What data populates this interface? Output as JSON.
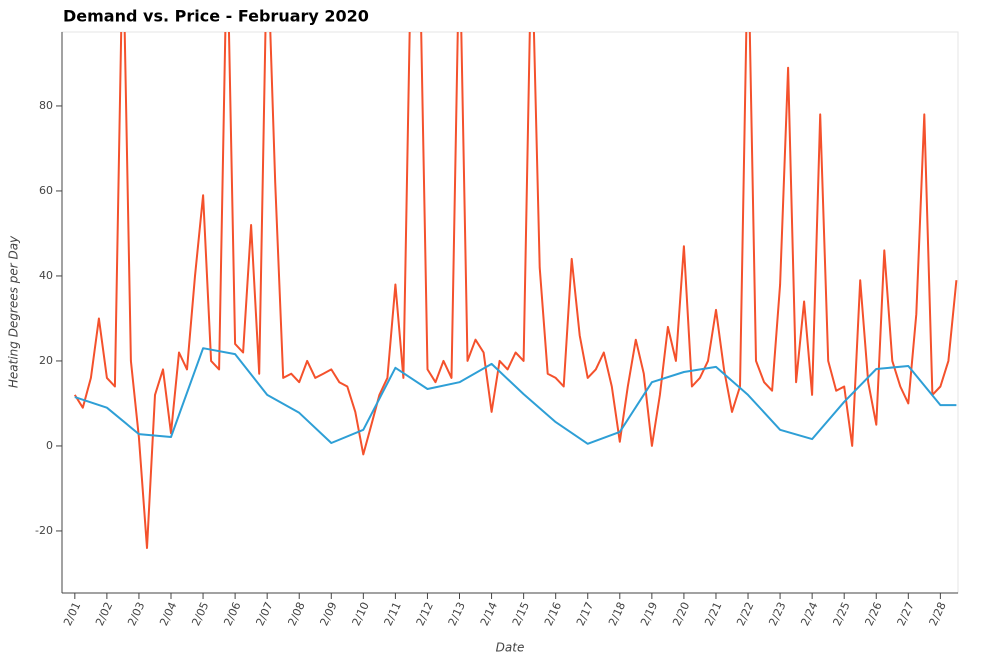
{
  "chart_data": {
    "type": "line",
    "title": "Demand vs. Price - February 2020",
    "xlabel": "Date",
    "ylabel": "Heating Degrees per Day",
    "xlim": [
      -0.4,
      27.55
    ],
    "ylim": [
      -34.6,
      97.4
    ],
    "yticks": [
      -20,
      0,
      20,
      40,
      60,
      80
    ],
    "xticks": [
      {
        "value": 0,
        "label": "2/01"
      },
      {
        "value": 1,
        "label": "2/02"
      },
      {
        "value": 2,
        "label": "2/03"
      },
      {
        "value": 3,
        "label": "2/04"
      },
      {
        "value": 4,
        "label": "2/05"
      },
      {
        "value": 5,
        "label": "2/06"
      },
      {
        "value": 6,
        "label": "2/07"
      },
      {
        "value": 7,
        "label": "2/08"
      },
      {
        "value": 8,
        "label": "2/09"
      },
      {
        "value": 9,
        "label": "2/10"
      },
      {
        "value": 10,
        "label": "2/11"
      },
      {
        "value": 11,
        "label": "2/12"
      },
      {
        "value": 12,
        "label": "2/13"
      },
      {
        "value": 13,
        "label": "2/14"
      },
      {
        "value": 14,
        "label": "2/15"
      },
      {
        "value": 15,
        "label": "2/16"
      },
      {
        "value": 16,
        "label": "2/17"
      },
      {
        "value": 17,
        "label": "2/18"
      },
      {
        "value": 18,
        "label": "2/19"
      },
      {
        "value": 19,
        "label": "2/20"
      },
      {
        "value": 20,
        "label": "2/21"
      },
      {
        "value": 21,
        "label": "2/22"
      },
      {
        "value": 22,
        "label": "2/23"
      },
      {
        "value": 23,
        "label": "2/24"
      },
      {
        "value": 24,
        "label": "2/25"
      },
      {
        "value": 25,
        "label": "2/26"
      },
      {
        "value": 26,
        "label": "2/27"
      },
      {
        "value": 27,
        "label": "2/28"
      }
    ],
    "series": [
      {
        "color": "#f4512c",
        "x": [
          0,
          0.25,
          0.5,
          0.75,
          1,
          1.25,
          1.5,
          1.75,
          2,
          2.25,
          2.5,
          2.75,
          3,
          3.25,
          3.5,
          3.75,
          4,
          4.25,
          4.5,
          4.75,
          5,
          5.25,
          5.5,
          5.75,
          6,
          6.25,
          6.5,
          6.75,
          7,
          7.25,
          7.5,
          7.75,
          8,
          8.25,
          8.5,
          8.75,
          9,
          9.25,
          9.5,
          9.75,
          10,
          10.25,
          10.5,
          10.75,
          11,
          11.25,
          11.5,
          11.75,
          12,
          12.25,
          12.5,
          12.75,
          13,
          13.25,
          13.5,
          13.75,
          14,
          14.25,
          14.5,
          14.75,
          15,
          15.25,
          15.5,
          15.75,
          16,
          16.25,
          16.5,
          16.75,
          17,
          17.25,
          17.5,
          17.75,
          18,
          18.25,
          18.5,
          18.75,
          19,
          19.25,
          19.5,
          19.75,
          20,
          20.25,
          20.5,
          20.75,
          21,
          21.25,
          21.5,
          21.75,
          22,
          22.25,
          22.5,
          22.75,
          23,
          23.25,
          23.5,
          23.75,
          24,
          24.25,
          24.5,
          24.75,
          25,
          25.25,
          25.5,
          25.75,
          26,
          26.25,
          26.5,
          26.75,
          27,
          27.25,
          27.5
        ],
        "values": [
          12,
          9,
          16,
          30,
          16,
          14,
          120,
          20,
          2,
          -24,
          12,
          18,
          3,
          22,
          18,
          40,
          59,
          20,
          18,
          120,
          24,
          22,
          52,
          17,
          120,
          62,
          16,
          17,
          15,
          20,
          16,
          17,
          18,
          15,
          14,
          8,
          -2,
          5,
          12,
          16,
          38,
          16,
          120,
          120,
          18,
          15,
          20,
          16,
          120,
          20,
          25,
          22,
          8,
          20,
          18,
          22,
          20,
          120,
          42,
          17,
          16,
          14,
          44,
          26,
          16,
          18,
          22,
          14,
          1,
          14,
          25,
          17,
          0,
          12,
          28,
          20,
          47,
          14,
          16,
          20,
          32,
          18,
          8,
          14,
          120,
          20,
          15,
          13,
          38,
          89,
          15,
          34,
          12,
          78,
          20,
          13,
          14,
          0,
          39,
          15,
          5,
          46,
          20,
          14,
          10,
          31,
          78,
          12,
          14,
          20,
          39
        ]
      },
      {
        "color": "#2e9fd6",
        "x": [
          0,
          1,
          2,
          3,
          4,
          5,
          6,
          7,
          8,
          9,
          10,
          11,
          12,
          13,
          14,
          15,
          16,
          17,
          18,
          19,
          20,
          21,
          22,
          23,
          24,
          25,
          26,
          27,
          27.5
        ],
        "values": [
          11.5,
          9,
          2.8,
          2.1,
          23,
          21.6,
          12,
          7.8,
          0.7,
          3.8,
          18.4,
          13.4,
          15,
          19.3,
          12.2,
          5.6,
          0.5,
          3.3,
          15,
          17.4,
          18.6,
          12,
          3.8,
          1.6,
          10.4,
          18.1,
          18.8,
          9.6,
          9.6
        ]
      }
    ]
  }
}
